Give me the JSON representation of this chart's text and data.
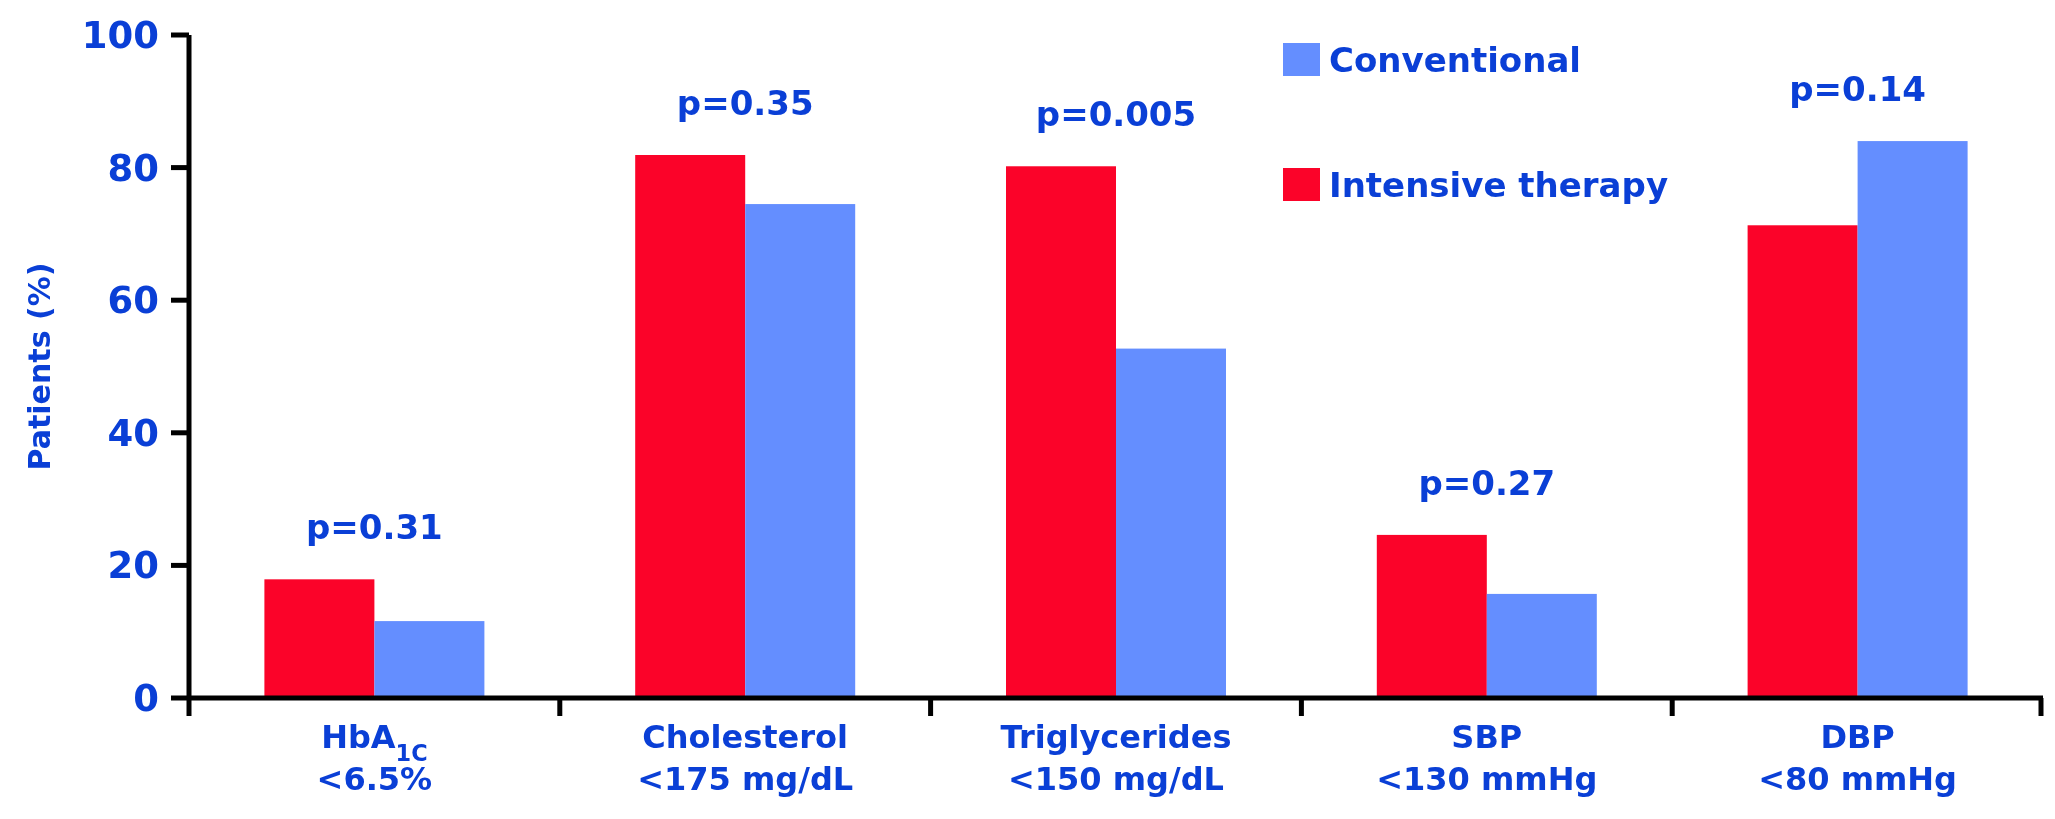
{
  "chart_data": {
    "type": "bar",
    "categories": [
      "HbA$_{1C}$\n<6.5%",
      "Cholesterol\n<175 mg/dL",
      "Triglycerides\n<150 mg/dL",
      "SBP\n<130 mmHg",
      "DBP\n<80 mmHg"
    ],
    "series": [
      {
        "name": "Intensive therapy",
        "color": "#fb0329",
        "values": [
          17.9,
          81.9,
          80.2,
          24.6,
          71.3
        ]
      },
      {
        "name": "Conventional",
        "color": "#648eff",
        "values": [
          11.6,
          74.5,
          52.7,
          15.7,
          84.0
        ]
      }
    ],
    "ylabel": "Patients (%)",
    "ylim": [
      0,
      100
    ],
    "yticks": [
      0,
      20,
      40,
      60,
      80,
      100
    ],
    "legend": "top right",
    "annotations": [
      "p=0.31",
      "p=0.35",
      "p=0.005",
      "p=0.27",
      "p=0.14"
    ]
  }
}
